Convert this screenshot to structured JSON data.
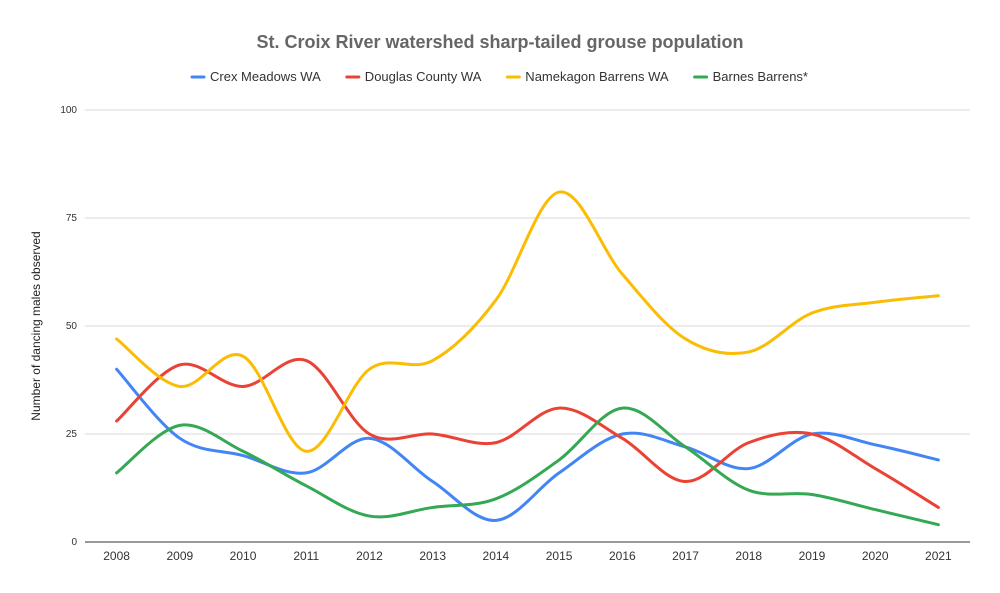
{
  "chart_data": {
    "type": "line",
    "title": "St. Croix River watershed sharp-tailed grouse population",
    "ylabel": "Number of dancing males observed",
    "xlabel": "",
    "ylim": [
      0,
      100
    ],
    "yticks": [
      0,
      25,
      50,
      75,
      100
    ],
    "grid": true,
    "legend_position": "top",
    "smooth": true,
    "categories": [
      "2008",
      "2009",
      "2010",
      "2011",
      "2012",
      "2013",
      "2014",
      "2015",
      "2016",
      "2017",
      "2018",
      "2019",
      "2020",
      "2021"
    ],
    "series": [
      {
        "name": "Crex Meadows WA",
        "color": "#4285f4",
        "values": [
          40,
          24,
          20,
          16,
          24,
          14,
          5,
          16,
          25,
          22,
          17,
          25,
          22.5,
          19
        ]
      },
      {
        "name": "Douglas County WA",
        "color": "#ea4335",
        "values": [
          28,
          41,
          36,
          42,
          25,
          25,
          23,
          31,
          24,
          14,
          23,
          25,
          17,
          8
        ]
      },
      {
        "name": "Namekagon Barrens WA",
        "color": "#fbbc04",
        "values": [
          47,
          36,
          43,
          21,
          40,
          42,
          56,
          81,
          62,
          47,
          44,
          53,
          55.5,
          57
        ]
      },
      {
        "name": "Barnes Barrens*",
        "color": "#34a853",
        "values": [
          16,
          27,
          21,
          13,
          6,
          8,
          10,
          19,
          31,
          22,
          12,
          11,
          7.5,
          4
        ]
      }
    ]
  }
}
